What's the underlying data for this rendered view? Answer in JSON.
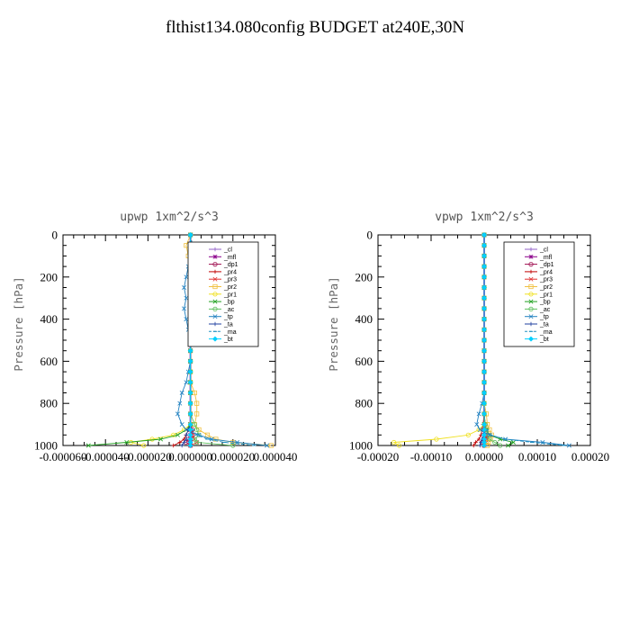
{
  "title": "flthist134.080config  BUDGET at240E,30N",
  "legend_entries": [
    {
      "label": "_cl",
      "color": "#9060c8",
      "symbol": "+"
    },
    {
      "label": "_mfl",
      "color": "#8b008b",
      "symbol": "*"
    },
    {
      "label": "_dp1",
      "color": "#a01050",
      "symbol": "o"
    },
    {
      "label": "_pr4",
      "color": "#c00000",
      "symbol": "+"
    },
    {
      "label": "_pr3",
      "color": "#e03030",
      "symbol": "x"
    },
    {
      "label": "_pr2",
      "color": "#f0c040",
      "symbol": "s"
    },
    {
      "label": "_pr1",
      "color": "#f0e020",
      "symbol": "o"
    },
    {
      "label": "_bp",
      "color": "#20a020",
      "symbol": "x"
    },
    {
      "label": "_ac",
      "color": "#60c060",
      "symbol": "o"
    },
    {
      "label": "_tp",
      "color": "#2080c0",
      "symbol": "x"
    },
    {
      "label": "_ta",
      "color": "#2040a0",
      "symbol": "+"
    },
    {
      "label": "_ma",
      "color": "#2090c0",
      "symbol": "-"
    },
    {
      "label": "_bt",
      "color": "#00d0ff",
      "symbol": "d"
    }
  ],
  "chart_data": [
    {
      "type": "line",
      "title": "upwp   1xm^2/s^3",
      "ylabel": "Pressure [hPa]",
      "xlabel": "",
      "xlim": [
        -6e-05,
        4e-05
      ],
      "ylim": [
        1000,
        0
      ],
      "y_inverted": true,
      "x_ticks": [
        "-0.000060",
        "-0.000040",
        "-0.000020",
        "0.000000",
        "0.000020",
        "0.000040"
      ],
      "y_ticks": [
        "0",
        "200",
        "400",
        "600",
        "800",
        "1000"
      ],
      "levels": [
        0,
        50,
        100,
        150,
        200,
        250,
        300,
        350,
        400,
        450,
        500,
        550,
        600,
        650,
        700,
        750,
        800,
        850,
        900,
        925,
        950,
        970,
        985,
        1000
      ],
      "series": [
        {
          "name": "_cl",
          "values": [
            0,
            0,
            0,
            0,
            0,
            0,
            0,
            0,
            0,
            0,
            0,
            0,
            0,
            0,
            0,
            0,
            0,
            0,
            0,
            0,
            0,
            0,
            0,
            0
          ]
        },
        {
          "name": "_mfl",
          "values": [
            0,
            0,
            0,
            0,
            0,
            0,
            0,
            0,
            0,
            0,
            0,
            0,
            0,
            0,
            0,
            0,
            0,
            0,
            0,
            0,
            0,
            0,
            0,
            0
          ]
        },
        {
          "name": "_dp1",
          "values": [
            0,
            0,
            0,
            0,
            0,
            0,
            0,
            0,
            0,
            0,
            0,
            0,
            0,
            0,
            0,
            0,
            0,
            0,
            0,
            1e-06,
            1e-06,
            -1e-06,
            -2e-06,
            0
          ]
        },
        {
          "name": "_pr4",
          "values": [
            0,
            0,
            0,
            0,
            0,
            0,
            0,
            0,
            0,
            0,
            0,
            0,
            0,
            0,
            0,
            0,
            0,
            0,
            0,
            -1e-06,
            -2e-06,
            -3e-06,
            -5e-06,
            -8e-06
          ]
        },
        {
          "name": "_pr3",
          "values": [
            0,
            0,
            0,
            0,
            0,
            0,
            0,
            0,
            0,
            0,
            0,
            0,
            0,
            0,
            0,
            0,
            0,
            0,
            0,
            0,
            1e-06,
            2e-06,
            3e-06,
            0
          ]
        },
        {
          "name": "_pr2",
          "values": [
            0,
            -2e-06,
            -1e-06,
            0,
            0,
            0,
            1e-06,
            0,
            0,
            0,
            0,
            0,
            0,
            0,
            0,
            2e-06,
            3e-06,
            3e-06,
            2e-06,
            4e-06,
            8e-06,
            1.2e-05,
            2e-05,
            3.8e-05
          ]
        },
        {
          "name": "_pr1",
          "values": [
            0,
            0,
            0,
            0,
            0,
            0,
            0,
            0,
            0,
            0,
            0,
            0,
            0,
            0,
            0,
            0,
            0,
            0,
            0,
            -3e-06,
            -8e-06,
            -1.8e-05,
            -2.8e-05,
            -2.2e-05
          ]
        },
        {
          "name": "_bp",
          "values": [
            0,
            0,
            0,
            0,
            0,
            0,
            0,
            0,
            0,
            0,
            0,
            0,
            0,
            0,
            0,
            0,
            0,
            0,
            0,
            -2e-06,
            -6e-06,
            -1.4e-05,
            -3e-05,
            -4.8e-05
          ]
        },
        {
          "name": "_ac",
          "values": [
            0,
            0,
            0,
            0,
            0,
            0,
            0,
            0,
            0,
            0,
            0,
            0,
            0,
            0,
            0,
            0,
            0,
            0,
            2e-06,
            3e-06,
            4e-06,
            2e-06,
            3e-06,
            2e-05
          ]
        },
        {
          "name": "_tp",
          "values": [
            0,
            0,
            0,
            -1e-06,
            -2e-06,
            -3e-06,
            -2e-06,
            -3e-06,
            -2e-06,
            -1e-06,
            0,
            0,
            0,
            -1e-06,
            -2e-06,
            -4e-06,
            -5e-06,
            -6e-06,
            -4e-06,
            -2e-06,
            4e-06,
            1e-05,
            2.2e-05,
            3.6e-05
          ]
        },
        {
          "name": "_ta",
          "values": [
            0,
            0,
            0,
            0,
            0,
            0,
            0,
            0,
            0,
            0,
            0,
            0,
            0,
            0,
            0,
            0,
            0,
            0,
            0,
            -1e-06,
            -2e-06,
            -2e-06,
            -3e-06,
            -4e-06
          ]
        },
        {
          "name": "_ma",
          "values": [
            0,
            1e-06,
            2e-06,
            1e-06,
            1e-06,
            0,
            0,
            0,
            0,
            0,
            0,
            0,
            0,
            0,
            0,
            0,
            0,
            0,
            0,
            1e-06,
            3e-06,
            8e-06,
            1.6e-05,
            3e-05
          ]
        },
        {
          "name": "_bt",
          "values": [
            0,
            0,
            0,
            0,
            0,
            0,
            0,
            0,
            0,
            0,
            0,
            0,
            0,
            0,
            0,
            0,
            0,
            0,
            0,
            0,
            0,
            0,
            0,
            0
          ]
        }
      ]
    },
    {
      "type": "line",
      "title": "vpwp   1xm^2/s^3",
      "ylabel": "Pressure [hPa]",
      "xlabel": "",
      "xlim": [
        -0.0002,
        0.0002
      ],
      "ylim": [
        1000,
        0
      ],
      "y_inverted": true,
      "x_ticks": [
        "-0.00020",
        "-0.00010",
        "0.00000",
        "0.00010",
        "0.00020"
      ],
      "y_ticks": [
        "0",
        "200",
        "400",
        "600",
        "800",
        "1000"
      ],
      "levels": [
        0,
        50,
        100,
        150,
        200,
        250,
        300,
        350,
        400,
        450,
        500,
        550,
        600,
        650,
        700,
        750,
        800,
        850,
        900,
        925,
        950,
        970,
        985,
        1000
      ],
      "series": [
        {
          "name": "_cl",
          "values": [
            0,
            0,
            0,
            0,
            0,
            0,
            0,
            0,
            0,
            0,
            0,
            0,
            0,
            0,
            0,
            0,
            0,
            0,
            0,
            0,
            0,
            0,
            0,
            0
          ]
        },
        {
          "name": "_mfl",
          "values": [
            0,
            0,
            0,
            0,
            0,
            0,
            0,
            0,
            0,
            0,
            0,
            0,
            0,
            0,
            0,
            0,
            0,
            0,
            0,
            0,
            0,
            0,
            0,
            0
          ]
        },
        {
          "name": "_dp1",
          "values": [
            0,
            0,
            0,
            0,
            0,
            0,
            0,
            0,
            0,
            0,
            0,
            0,
            0,
            0,
            0,
            0,
            0,
            0,
            2e-06,
            4e-06,
            6e-06,
            2e-06,
            -4e-06,
            0
          ]
        },
        {
          "name": "_pr4",
          "values": [
            0,
            0,
            0,
            0,
            0,
            0,
            0,
            0,
            0,
            0,
            0,
            0,
            0,
            0,
            0,
            0,
            0,
            0,
            -2e-06,
            -4e-06,
            -6e-06,
            -1e-05,
            -1.6e-05,
            -2e-05
          ]
        },
        {
          "name": "_pr3",
          "values": [
            0,
            0,
            0,
            0,
            0,
            0,
            0,
            0,
            0,
            0,
            0,
            0,
            0,
            0,
            0,
            0,
            0,
            0,
            2e-06,
            4e-06,
            6e-06,
            6e-06,
            4e-06,
            0
          ]
        },
        {
          "name": "_pr2",
          "values": [
            0,
            0,
            0,
            0,
            0,
            0,
            0,
            0,
            0,
            0,
            0,
            0,
            0,
            0,
            0,
            0,
            0,
            4e-06,
            6e-06,
            1e-05,
            1.4e-05,
            1.2e-05,
            8e-06,
            6e-06
          ]
        },
        {
          "name": "_pr1",
          "values": [
            0,
            0,
            0,
            0,
            0,
            0,
            0,
            0,
            0,
            0,
            0,
            0,
            0,
            0,
            0,
            0,
            0,
            0,
            0,
            -1e-05,
            -3e-05,
            -9e-05,
            -0.00017,
            -0.00016
          ]
        },
        {
          "name": "_bp",
          "values": [
            0,
            0,
            0,
            0,
            0,
            0,
            0,
            0,
            0,
            0,
            0,
            0,
            0,
            0,
            0,
            0,
            0,
            0,
            0,
            4e-06,
            1e-05,
            3e-05,
            5.5e-05,
            4.5e-05
          ]
        },
        {
          "name": "_ac",
          "values": [
            0,
            0,
            0,
            0,
            0,
            0,
            0,
            0,
            0,
            0,
            0,
            0,
            0,
            0,
            0,
            0,
            0,
            0,
            2e-06,
            4e-06,
            6e-06,
            1e-05,
            2e-05,
            3e-05
          ]
        },
        {
          "name": "_tp",
          "values": [
            0,
            0,
            0,
            0,
            0,
            0,
            0,
            0,
            0,
            0,
            0,
            0,
            0,
            0,
            0,
            0,
            -4e-06,
            -1e-05,
            -1.4e-05,
            -8e-06,
            1e-05,
            4e-05,
            0.00011,
            0.00016
          ]
        },
        {
          "name": "_ta",
          "values": [
            0,
            0,
            0,
            0,
            0,
            0,
            0,
            0,
            0,
            0,
            0,
            0,
            0,
            0,
            0,
            0,
            0,
            0,
            0,
            0,
            -2e-06,
            -4e-06,
            -6e-06,
            -8e-06
          ]
        },
        {
          "name": "_ma",
          "values": [
            0,
            0,
            0,
            0,
            0,
            0,
            0,
            0,
            0,
            0,
            0,
            0,
            0,
            0,
            0,
            0,
            0,
            0,
            0,
            4e-06,
            1.2e-05,
            4e-05,
            9e-05,
            0.00015
          ]
        },
        {
          "name": "_bt",
          "values": [
            0,
            0,
            0,
            0,
            0,
            0,
            0,
            0,
            0,
            0,
            0,
            0,
            0,
            0,
            0,
            0,
            0,
            0,
            0,
            0,
            0,
            0,
            0,
            0
          ]
        }
      ]
    }
  ]
}
